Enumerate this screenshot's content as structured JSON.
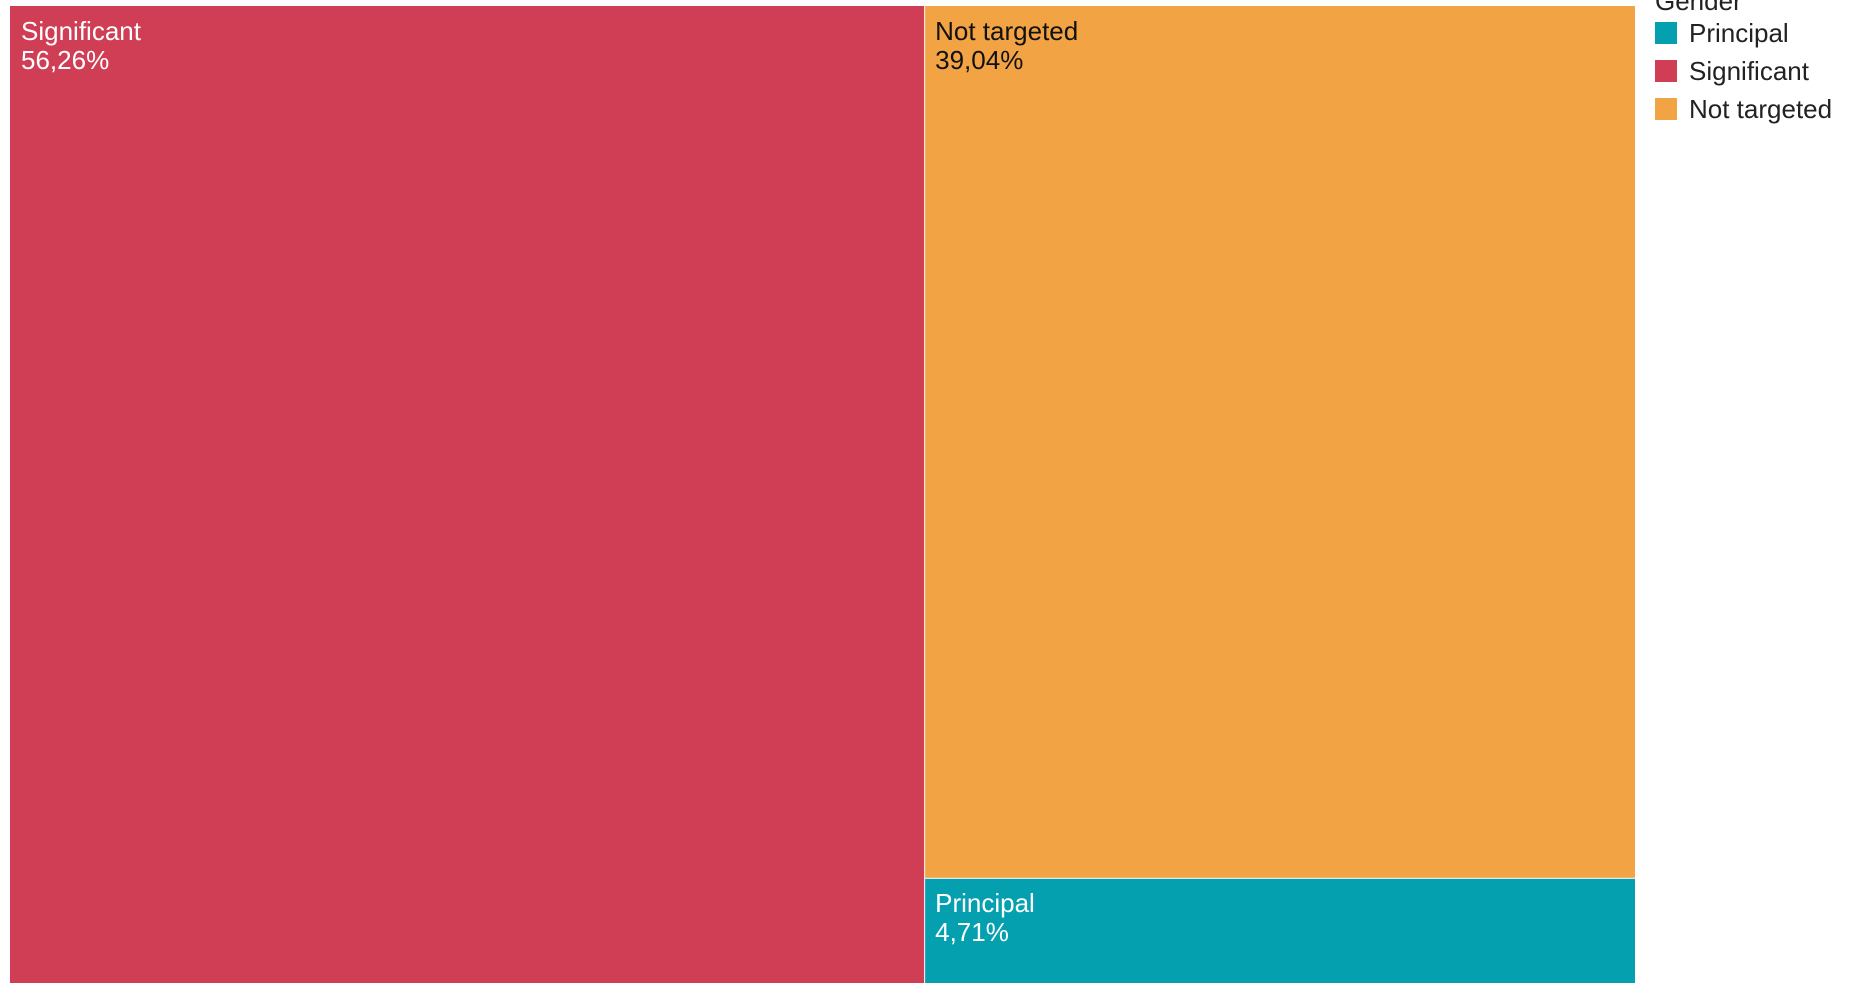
{
  "chart_data": {
    "type": "treemap",
    "legend_title": "Gender",
    "legend_placement": "top-right",
    "categories": [
      "Principal",
      "Significant",
      "Not targeted"
    ],
    "values": [
      4.71,
      56.26,
      39.04
    ],
    "value_labels": [
      "4,71%",
      "56,26%",
      "39,04%"
    ],
    "colors": [
      "#04a0b0",
      "#cf3e54",
      "#f2a444"
    ],
    "label_colors": [
      "#ffffff",
      "#ffffff",
      "#111111"
    ]
  }
}
